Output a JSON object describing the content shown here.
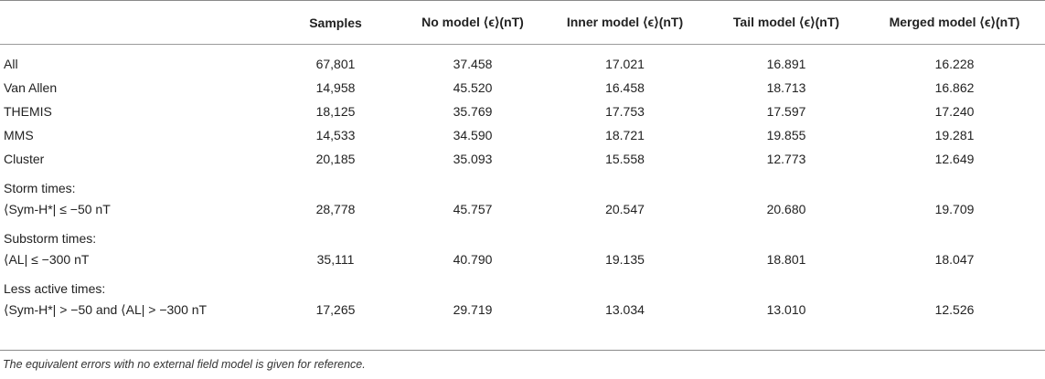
{
  "table": {
    "headers": [
      "",
      "Samples",
      "No model ⟨ϵ⟩(nT)",
      "Inner model ⟨ϵ⟩(nT)",
      "Tail model ⟨ϵ⟩(nT)",
      "Merged model ⟨ϵ⟩(nT)"
    ],
    "rows": [
      {
        "label": "All",
        "values": [
          "67,801",
          "37.458",
          "17.021",
          "16.891",
          "16.228"
        ]
      },
      {
        "label": "Van Allen",
        "values": [
          "14,958",
          "45.520",
          "16.458",
          "18.713",
          "16.862"
        ]
      },
      {
        "label": "THEMIS",
        "values": [
          "18,125",
          "35.769",
          "17.753",
          "17.597",
          "17.240"
        ]
      },
      {
        "label": "MMS",
        "values": [
          "14,533",
          "34.590",
          "18.721",
          "19.855",
          "19.281"
        ]
      },
      {
        "label": "Cluster",
        "values": [
          "20,185",
          "35.093",
          "15.558",
          "12.773",
          "12.649"
        ]
      }
    ],
    "groups": [
      {
        "heading": "Storm times:",
        "label": "⟨Sym-H*| ≤ −50 nT",
        "values": [
          "28,778",
          "45.757",
          "20.547",
          "20.680",
          "19.709"
        ]
      },
      {
        "heading": "Substorm times:",
        "label": "⟨AL| ≤ −300 nT",
        "values": [
          "35,111",
          "40.790",
          "19.135",
          "18.801",
          "18.047"
        ]
      },
      {
        "heading": "Less active times:",
        "label": "⟨Sym-H*| > −50 and ⟨AL| > −300 nT",
        "values": [
          "17,265",
          "29.719",
          "13.034",
          "13.010",
          "12.526"
        ]
      }
    ]
  },
  "footnote": "The equivalent errors with no external field model is given for reference."
}
